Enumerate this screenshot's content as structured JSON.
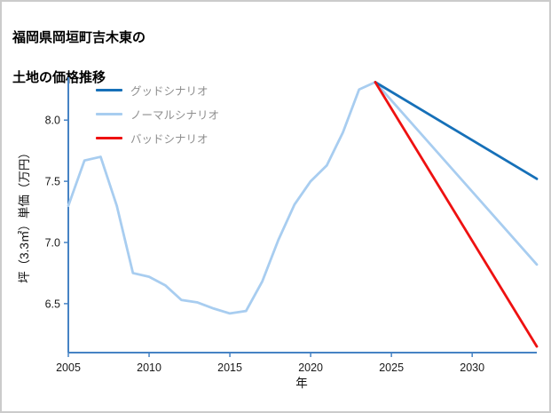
{
  "title": {
    "line1": "福岡県岡垣町吉木東の",
    "line2": "土地の価格推移"
  },
  "chart_data": {
    "type": "line",
    "title": "福岡県岡垣町吉木東の土地の価格推移",
    "xlabel": "年",
    "ylabel": "坪（3.3㎡）単価（万円）",
    "xlim": [
      2005,
      2034
    ],
    "ylim": [
      6.1,
      8.35
    ],
    "xticks": [
      2005,
      2010,
      2015,
      2020,
      2025,
      2030
    ],
    "yticks": [
      6.5,
      7.0,
      7.5,
      8.0
    ],
    "ytick_labels": [
      "6.5",
      "7.0",
      "7.5",
      "8.0"
    ],
    "grid": false,
    "legend_position": "top-left",
    "axis_color": "#4683c4",
    "tick_label_color": "#1a1a1a",
    "series": [
      {
        "name": "グッドシナリオ",
        "color": "#1670b8",
        "x": [
          2024,
          2034
        ],
        "y": [
          8.31,
          7.52
        ]
      },
      {
        "name": "ノーマルシナリオ",
        "color": "#a8cdf0",
        "x": [
          2005,
          2006,
          2007,
          2008,
          2009,
          2010,
          2011,
          2012,
          2013,
          2014,
          2015,
          2016,
          2017,
          2018,
          2019,
          2020,
          2021,
          2022,
          2023,
          2024,
          2034
        ],
        "y": [
          7.3,
          7.67,
          7.7,
          7.3,
          6.75,
          6.72,
          6.65,
          6.53,
          6.51,
          6.46,
          6.42,
          6.44,
          6.68,
          7.02,
          7.31,
          7.5,
          7.63,
          7.9,
          8.25,
          8.31,
          6.82
        ]
      },
      {
        "name": "バッドシナリオ",
        "color": "#ee1111",
        "x": [
          2024,
          2034
        ],
        "y": [
          8.31,
          6.15
        ]
      }
    ]
  }
}
